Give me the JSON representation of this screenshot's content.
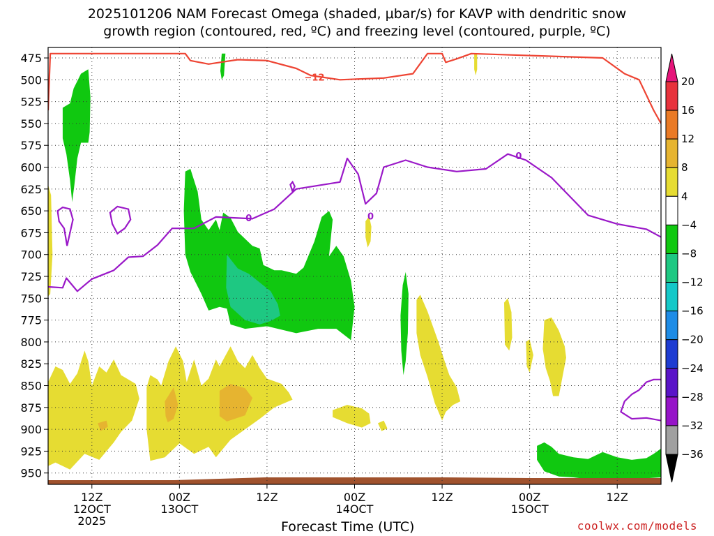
{
  "title": {
    "line1": "2025101206 NAM Forecast Omega (shaded, μbar/s) for KAVP with dendritic snow",
    "line2": "growth region (contoured, red, ºC) and freezing level (contoured, purple, ºC)"
  },
  "credit": "coolwx.com/models",
  "chart_data": {
    "type": "heatmap",
    "xlabel": "Forecast Time (UTC)",
    "y_axis": {
      "ticks": [
        475,
        500,
        525,
        550,
        575,
        600,
        625,
        650,
        675,
        700,
        725,
        750,
        775,
        800,
        825,
        850,
        875,
        900,
        925,
        950
      ],
      "units": "hPa",
      "inverted": true
    },
    "x_axis": {
      "ticks": [
        {
          "hour": 12,
          "line1": "12Z",
          "line2": "12OCT",
          "line3": "2025"
        },
        {
          "hour": 24,
          "line1": "00Z",
          "line2": "13OCT",
          "line3": ""
        },
        {
          "hour": 36,
          "line1": "12Z",
          "line2": "",
          "line3": ""
        },
        {
          "hour": 48,
          "line1": "00Z",
          "line2": "14OCT",
          "line3": ""
        },
        {
          "hour": 60,
          "line1": "12Z",
          "line2": "",
          "line3": ""
        },
        {
          "hour": 72,
          "line1": "00Z",
          "line2": "15OCT",
          "line3": ""
        },
        {
          "hour": 84,
          "line1": "12Z",
          "line2": "",
          "line3": ""
        }
      ],
      "range": [
        6,
        90
      ]
    },
    "grid": true,
    "colorbar": {
      "labels": [
        "20",
        "16",
        "12",
        "8",
        "4",
        "−4",
        "−8",
        "−12",
        "−16",
        "−20",
        "−24",
        "−28",
        "−32",
        "−36"
      ],
      "colors": [
        "#e8323c",
        "#ea7a25",
        "#e6b430",
        "#e6dc32",
        "#ffffff",
        "#10c810",
        "#1ec882",
        "#14c8c8",
        "#1e8ce6",
        "#1e3cd2",
        "#5a14c8",
        "#9614c8",
        "#a0a0a0"
      ],
      "top_color": "#e6147a",
      "bottom_color": "#000000"
    },
    "contour_labels": {
      "dgz": "−12",
      "freezing": "0"
    },
    "colors": {
      "dgz_line": "#ee4433",
      "freezing_line": "#9a18c8",
      "ground": "#a0522d"
    },
    "series": [
      {
        "name": "dendritic snow growth region",
        "values": [
          [
            6,
            535
          ],
          [
            6.3,
            470
          ],
          [
            24.8,
            470
          ],
          [
            25.5,
            478
          ],
          [
            28,
            482
          ],
          [
            32,
            477
          ],
          [
            36,
            478
          ],
          [
            40,
            487
          ],
          [
            42,
            495
          ],
          [
            46,
            500
          ],
          [
            52,
            498
          ],
          [
            56,
            493
          ],
          [
            58,
            470
          ],
          [
            60,
            470
          ],
          [
            60.5,
            480
          ],
          [
            62,
            476
          ],
          [
            64,
            470
          ],
          [
            82,
            475
          ],
          [
            85,
            493
          ],
          [
            87,
            500
          ],
          [
            89,
            535
          ],
          [
            90,
            550
          ]
        ]
      },
      {
        "name": "freezing level",
        "values": [
          [
            6,
            737
          ],
          [
            8,
            738
          ],
          [
            8.5,
            727
          ],
          [
            10,
            742
          ],
          [
            12,
            728
          ],
          [
            15,
            718
          ],
          [
            17,
            703
          ],
          [
            19,
            702
          ],
          [
            21,
            689
          ],
          [
            23,
            670
          ],
          [
            26,
            670
          ],
          [
            29,
            657
          ],
          [
            34,
            659
          ],
          [
            37,
            648
          ],
          [
            40,
            625
          ],
          [
            43,
            621
          ],
          [
            46,
            617
          ],
          [
            47,
            590
          ],
          [
            48.5,
            608
          ],
          [
            49.5,
            642
          ],
          [
            51,
            630
          ],
          [
            52,
            600
          ],
          [
            55,
            592
          ],
          [
            58,
            600
          ],
          [
            62,
            605
          ],
          [
            66,
            602
          ],
          [
            69,
            585
          ],
          [
            71.5,
            592
          ],
          [
            75,
            612
          ],
          [
            80,
            655
          ],
          [
            84,
            665
          ],
          [
            88,
            671
          ],
          [
            90,
            680
          ]
        ]
      }
    ]
  }
}
